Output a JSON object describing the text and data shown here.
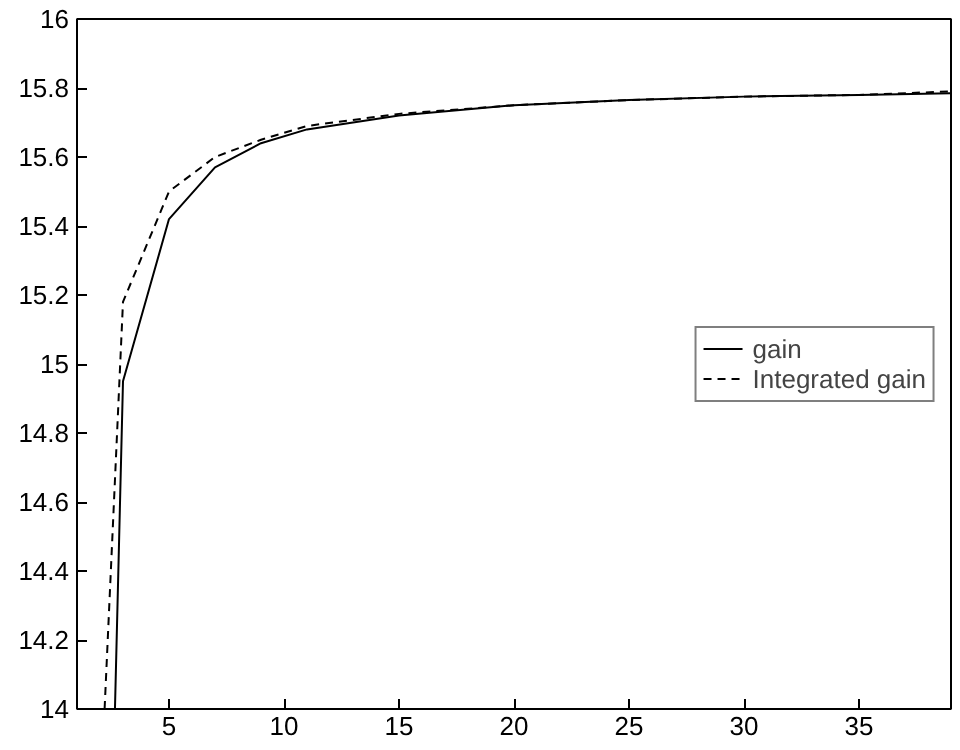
{
  "chart_data": {
    "type": "line",
    "xlim": [
      1,
      39
    ],
    "ylim": [
      14,
      16
    ],
    "xticks": [
      5,
      10,
      15,
      20,
      25,
      30,
      35
    ],
    "yticks": [
      14,
      14.2,
      14.4,
      14.6,
      14.8,
      15,
      15.2,
      15.4,
      15.6,
      15.8,
      16
    ],
    "grid": false,
    "legend": "right",
    "series": [
      {
        "name": "gain",
        "color": "#000000",
        "line_style": "solid",
        "x": [
          2.65,
          3,
          5,
          7,
          9,
          11,
          15,
          20,
          25,
          30,
          35,
          39
        ],
        "values": [
          14.0,
          14.95,
          15.42,
          15.57,
          15.64,
          15.68,
          15.72,
          15.75,
          15.765,
          15.775,
          15.78,
          15.785
        ]
      },
      {
        "name": "Integrated gain",
        "color": "#000000",
        "line_style": "dashed",
        "x": [
          2.2,
          3,
          5,
          7,
          9,
          11,
          15,
          20,
          25,
          30,
          35,
          39
        ],
        "values": [
          14.0,
          15.18,
          15.5,
          15.6,
          15.65,
          15.69,
          15.725,
          15.75,
          15.765,
          15.775,
          15.78,
          15.79
        ]
      }
    ]
  }
}
